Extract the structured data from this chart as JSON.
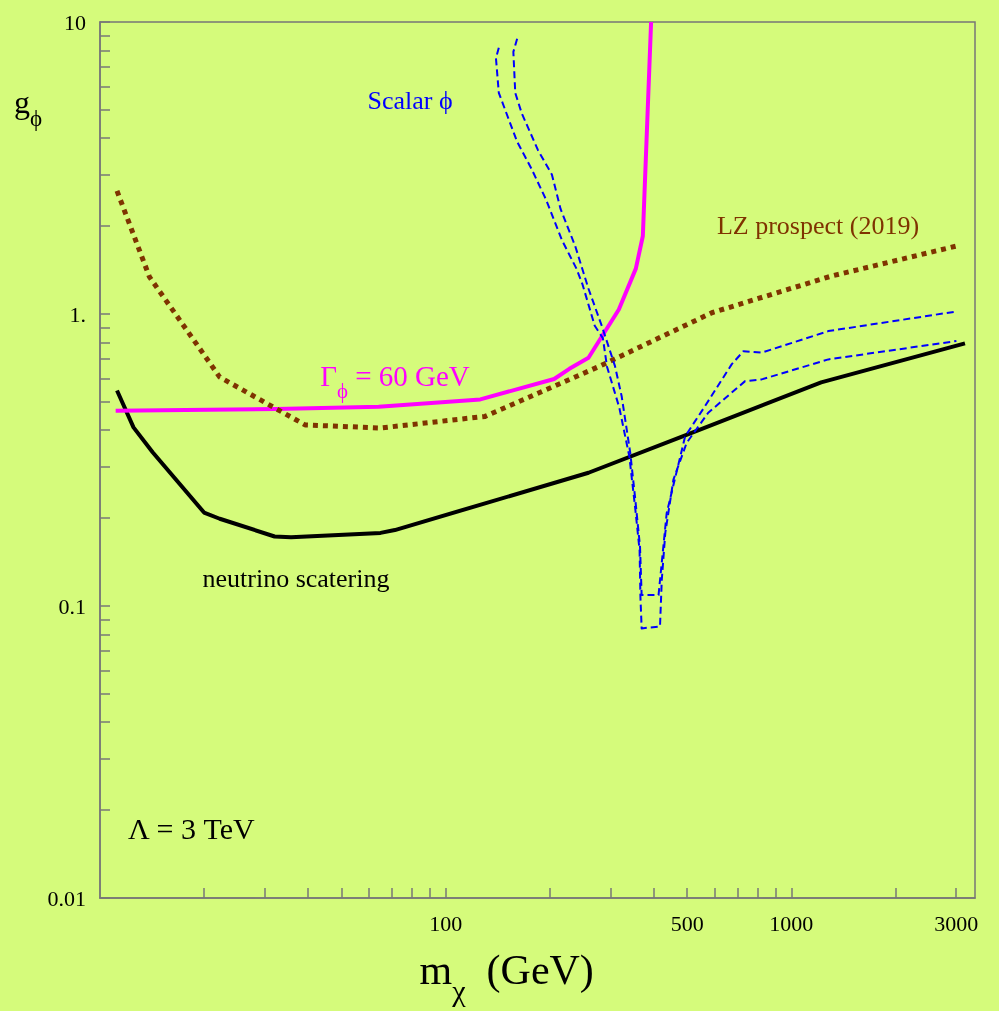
{
  "chart_data": {
    "type": "line",
    "xlabel": "m$_{χ}$  (GeV)",
    "ylabel": "g$_{ϕ}$",
    "log": "xy",
    "grid": false,
    "legend": false,
    "marker": "none",
    "xlim": [
      10,
      3400
    ],
    "ylim": [
      0.01,
      10
    ],
    "xticks": [
      {
        "value": 20,
        "label": null
      },
      {
        "value": 30,
        "label": null
      },
      {
        "value": 40,
        "label": null
      },
      {
        "value": 50,
        "label": null
      },
      {
        "value": 60,
        "label": null
      },
      {
        "value": 70,
        "label": null
      },
      {
        "value": 80,
        "label": null
      },
      {
        "value": 90,
        "label": null
      },
      100,
      {
        "value": 200,
        "label": null
      },
      {
        "value": 300,
        "label": null
      },
      {
        "value": 400,
        "label": null
      },
      500,
      {
        "value": 600,
        "label": null
      },
      {
        "value": 700,
        "label": null
      },
      {
        "value": 800,
        "label": null
      },
      {
        "value": 900,
        "label": null
      },
      1000,
      {
        "value": 2000,
        "label": null
      },
      3000
    ],
    "yticks": [
      0.01,
      {
        "value": 0.02,
        "label": null
      },
      {
        "value": 0.03,
        "label": null
      },
      {
        "value": 0.04,
        "label": null
      },
      {
        "value": 0.05,
        "label": null
      },
      {
        "value": 0.06,
        "label": null
      },
      {
        "value": 0.07,
        "label": null
      },
      {
        "value": 0.08,
        "label": null
      },
      {
        "value": 0.09,
        "label": null
      },
      0.1,
      {
        "value": 0.2,
        "label": null
      },
      {
        "value": 0.3,
        "label": null
      },
      {
        "value": 0.4,
        "label": null
      },
      {
        "value": 0.5,
        "label": null
      },
      {
        "value": 0.6,
        "label": null
      },
      {
        "value": 0.7,
        "label": null
      },
      {
        "value": 0.8,
        "label": null
      },
      {
        "value": 0.9,
        "label": null
      },
      {
        "value": 1,
        "label": "1."
      },
      {
        "value": 2,
        "label": null
      },
      {
        "value": 3,
        "label": null
      },
      {
        "value": 4,
        "label": null
      },
      {
        "value": 5,
        "label": null
      },
      {
        "value": 6,
        "label": null
      },
      {
        "value": 7,
        "label": null
      },
      {
        "value": 8,
        "label": null
      },
      {
        "value": 9,
        "label": null
      },
      10
    ],
    "series": [
      {
        "name": "neutrino scatering",
        "color": "#000000",
        "line_style": "solid",
        "x": [
          11.2,
          12.5,
          14.2,
          20.0,
          22.2,
          32.0,
          35.7,
          64.8,
          71.3,
          259,
          504,
          1220,
          3180
        ],
        "values": [
          0.547,
          0.409,
          0.336,
          0.209,
          0.199,
          0.173,
          0.172,
          0.178,
          0.182,
          0.286,
          0.388,
          0.583,
          0.793
        ]
      },
      {
        "name": "Γ$_{ϕ}$ = 60 GeV",
        "color": "#ff00ff",
        "line_style": "solid",
        "x": [
          11.1,
          32.4,
          64.0,
          126,
          206,
          228,
          259,
          317,
          355,
          372,
          393
        ],
        "values": [
          0.466,
          0.473,
          0.481,
          0.51,
          0.599,
          0.649,
          0.708,
          1.036,
          1.43,
          1.85,
          10
        ]
      },
      {
        "name": "LZ prospect (2019)",
        "color": "#7f3300",
        "line_style": "dotted",
        "x": [
          11.2,
          13.9,
          22.2,
          39.2,
          64.8,
          130,
          277,
          589,
          1310,
          3010
        ],
        "values": [
          2.64,
          1.34,
          0.608,
          0.417,
          0.407,
          0.446,
          0.66,
          1.01,
          1.35,
          1.71
        ]
      },
      {
        "name": "Scalar ϕ",
        "color": "#0000ff",
        "line_style": "dashed",
        "x": [
          142.5,
          139.8,
          142.5,
          148.4,
          161,
          177,
          195,
          217,
          239,
          249,
          270,
          285,
          293,
          318,
          340,
          354,
          364,
          366,
          369,
          417,
          422,
          432,
          456,
          498,
          575,
          735,
          821,
          1280,
          3004
        ],
        "values": [
          8.16,
          7.52,
          5.72,
          5.03,
          3.89,
          3.15,
          2.47,
          1.79,
          1.43,
          1.26,
          0.911,
          0.827,
          0.66,
          0.478,
          0.325,
          0.213,
          0.155,
          0.108,
          0.0838,
          0.0851,
          0.123,
          0.178,
          0.271,
          0.362,
          0.459,
          0.589,
          0.597,
          0.699,
          0.808
        ]
      },
      {
        "color": "#0000ff",
        "line_style": "dashed",
        "x": [
          161,
          157,
          159,
          166,
          185,
          203,
          215,
          237,
          259,
          283,
          309,
          323,
          342,
          353,
          365,
          369,
          413,
          436,
          493,
          563,
          672,
          727,
          821,
          1280,
          3004
        ],
        "values": [
          8.76,
          7.9,
          5.72,
          4.87,
          3.64,
          3.0,
          2.29,
          1.71,
          1.22,
          0.91,
          0.663,
          0.523,
          0.335,
          0.237,
          0.16,
          0.109,
          0.109,
          0.208,
          0.381,
          0.484,
          0.672,
          0.746,
          0.737,
          0.874,
          1.02
        ]
      }
    ],
    "annotations": [
      "Λ = 3 TeV"
    ]
  }
}
